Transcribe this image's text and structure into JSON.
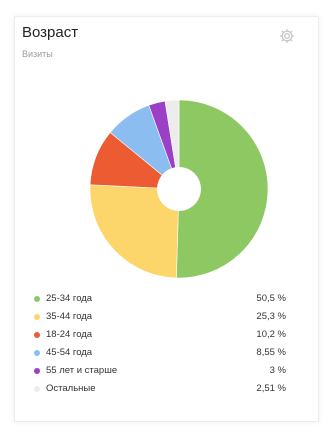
{
  "widget": {
    "title": "Возраст",
    "subtitle": "Визиты",
    "icon": "gear-icon"
  },
  "chart_data": {
    "type": "pie",
    "title": "Возраст",
    "subtitle": "Визиты",
    "donut": true,
    "legend_position": "bottom",
    "categories": [
      "25-34 года",
      "35-44 года",
      "18-24 года",
      "45-54 года",
      "55 лет и старше",
      "Остальные"
    ],
    "values": [
      50.5,
      25.3,
      10.2,
      8.55,
      3,
      2.51
    ],
    "value_labels": [
      "50,5 %",
      "25,3 %",
      "10,2 %",
      "8,55 %",
      "3 %",
      "2,51 %"
    ],
    "colors": [
      "#8dc863",
      "#fcd66a",
      "#ec5b32",
      "#8bbdf0",
      "#9b3fc6",
      "#ececec"
    ]
  }
}
